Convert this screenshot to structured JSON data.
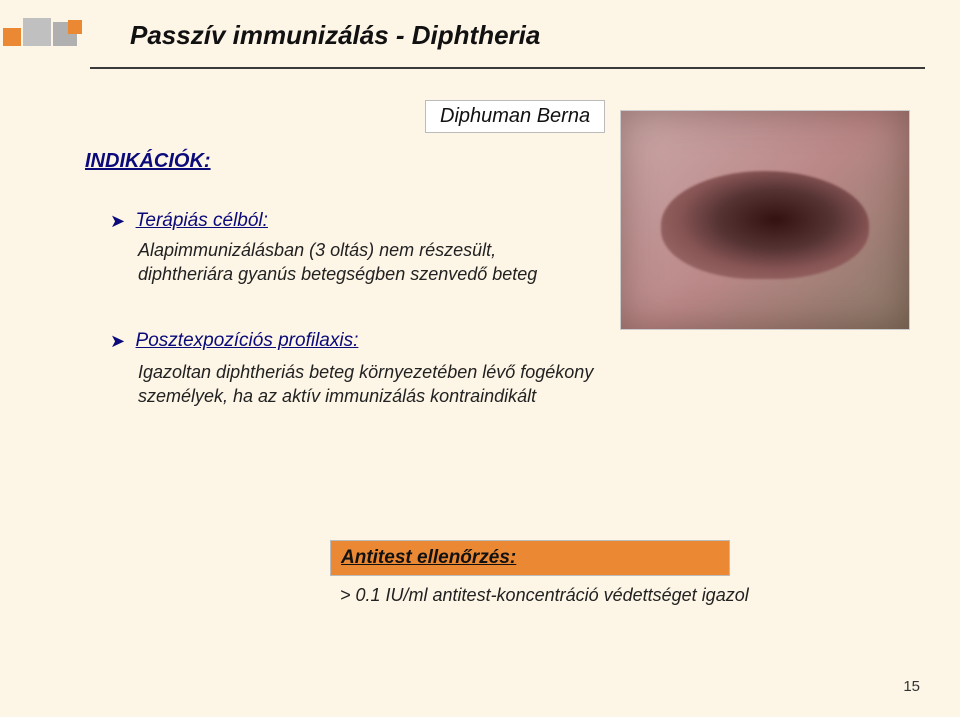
{
  "title": "Passzív immunizálás - Diphtheria",
  "subtitle": "Diphuman Berna",
  "indications_heading": "INDIKÁCIÓK:",
  "section1": {
    "label": "Terápiás célból:",
    "body": "Alapimmunizálásban (3 oltás) nem részesült, diphtheriára gyanús betegségben szenvedő beteg"
  },
  "section2": {
    "label": "Posztexpozíciós profilaxis:",
    "body": "Igazoltan diphtheriás beteg környezetében lévő fogékony személyek, ha az aktív immunizálás kontraindikált"
  },
  "callout": {
    "heading": "Antitest ellenőrzés:",
    "body": "> 0.1 IU/ml antitest-koncentráció védettséget igazol"
  },
  "page_number": "15"
}
